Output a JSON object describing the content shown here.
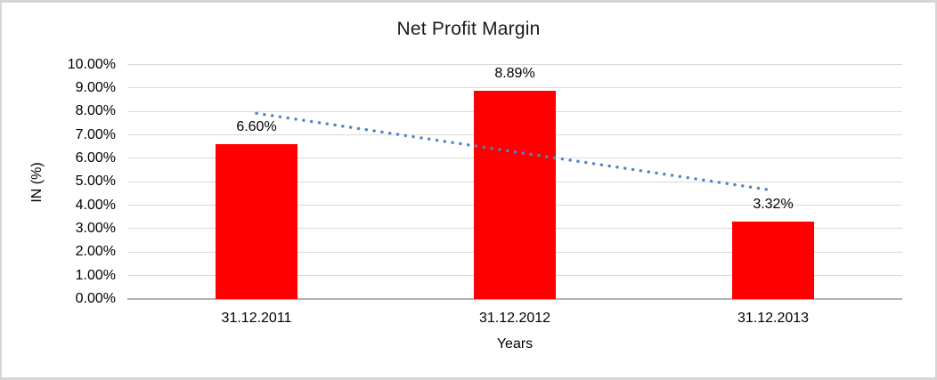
{
  "window": {
    "background": "#ffffff",
    "frame_border_color": "#d6d6d6"
  },
  "chart_data": {
    "type": "bar",
    "title": "Net Profit Margin",
    "xlabel": "Years",
    "ylabel": "IN (%)",
    "categories": [
      "31.12.2011",
      "31.12.2012",
      "31.12.2013"
    ],
    "values": [
      6.6,
      8.89,
      3.32
    ],
    "data_labels": [
      "6.60%",
      "8.89%",
      "3.32%"
    ],
    "ylim": [
      0,
      10
    ],
    "ytick_step": 1,
    "ytick_labels": [
      "0.00%",
      "1.00%",
      "2.00%",
      "3.00%",
      "4.00%",
      "5.00%",
      "6.00%",
      "7.00%",
      "8.00%",
      "9.00%",
      "10.00%"
    ],
    "grid": true,
    "legend": "none",
    "bar_color": "#ff0000",
    "gridline_color": "#d9d9d9",
    "axis_line_color": "#b3b3b3",
    "text_color": "#000000",
    "trendline": {
      "type": "linear",
      "style": "dotted",
      "color": "#4f86c6",
      "start_value": 7.92,
      "end_value": 4.63
    }
  }
}
